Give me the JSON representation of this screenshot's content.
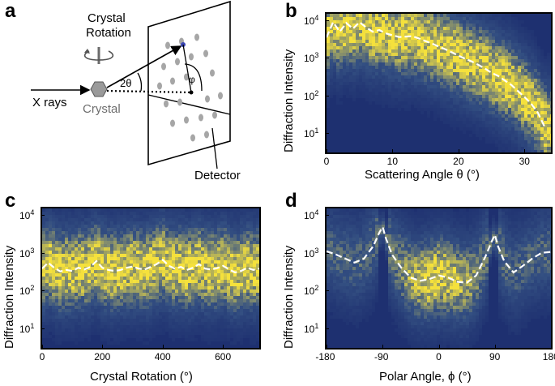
{
  "panels": {
    "a": {
      "letter": "a",
      "labels": {
        "crystal_rotation_1": "Crystal",
        "crystal_rotation_2": "Rotation",
        "two_theta": "2θ",
        "phi": "φ",
        "xrays": "X rays",
        "crystal": "Crystal",
        "detector": "Detector"
      }
    },
    "b": {
      "letter": "b"
    },
    "c": {
      "letter": "c"
    },
    "d": {
      "letter": "d"
    }
  },
  "chart_data": [
    {
      "panel": "b",
      "type": "heatmap",
      "xlabel": "Scattering Angle θ (°)",
      "ylabel": "Diffraction Intensity",
      "xlim": [
        0,
        34
      ],
      "ylim": [
        3,
        15000
      ],
      "yscale": "log",
      "x_ticks": [
        "0",
        "10",
        "20",
        "30"
      ],
      "x_tick_values": [
        0,
        10,
        20,
        30
      ],
      "y_ticks": [
        {
          "base": "10",
          "exp": "1",
          "value": 10
        },
        {
          "base": "10",
          "exp": "2",
          "value": 100
        },
        {
          "base": "10",
          "exp": "3",
          "value": 1000
        },
        {
          "base": "10",
          "exp": "4",
          "value": 10000
        }
      ],
      "mean_line": {
        "style": "white-dashed",
        "x": [
          0,
          1,
          2,
          3,
          4,
          5,
          6,
          7,
          8,
          9,
          10,
          11,
          12,
          13,
          14,
          15,
          16,
          17,
          18,
          19,
          20,
          21,
          22,
          23,
          24,
          25,
          26,
          27,
          28,
          29,
          30,
          31,
          32,
          33
        ],
        "y": [
          3500,
          9000,
          5000,
          8500,
          6000,
          9000,
          6500,
          5000,
          5500,
          4500,
          4000,
          3600,
          3700,
          3800,
          3300,
          2800,
          2400,
          2000,
          1700,
          1400,
          1150,
          950,
          800,
          650,
          520,
          400,
          330,
          250,
          190,
          130,
          90,
          60,
          35,
          15
        ]
      }
    },
    {
      "panel": "c",
      "type": "heatmap",
      "xlabel": "Crystal Rotation (°)",
      "ylabel": "Diffraction Intensity",
      "xlim": [
        0,
        720
      ],
      "ylim": [
        3,
        15000
      ],
      "yscale": "log",
      "x_ticks": [
        "0",
        "200",
        "400",
        "600"
      ],
      "x_tick_values": [
        0,
        200,
        400,
        600
      ],
      "y_ticks": [
        {
          "base": "10",
          "exp": "1",
          "value": 10
        },
        {
          "base": "10",
          "exp": "2",
          "value": 100
        },
        {
          "base": "10",
          "exp": "3",
          "value": 1000
        },
        {
          "base": "10",
          "exp": "4",
          "value": 10000
        }
      ],
      "mean_line": {
        "style": "white-dashed",
        "x": [
          0,
          20,
          40,
          60,
          80,
          100,
          120,
          140,
          160,
          180,
          200,
          220,
          240,
          260,
          280,
          300,
          320,
          340,
          360,
          380,
          400,
          420,
          440,
          460,
          480,
          500,
          520,
          540,
          560,
          580,
          600,
          620,
          640,
          660,
          680,
          700,
          720
        ],
        "y": [
          380,
          550,
          400,
          320,
          350,
          330,
          400,
          360,
          420,
          600,
          400,
          350,
          330,
          350,
          400,
          430,
          380,
          360,
          420,
          500,
          650,
          450,
          380,
          420,
          350,
          400,
          500,
          380,
          360,
          390,
          450,
          360,
          300,
          330,
          400,
          350,
          380
        ]
      }
    },
    {
      "panel": "d",
      "type": "heatmap",
      "xlabel": "Polar Angle, ϕ (°)",
      "ylabel": "Diffraction Intensity",
      "xlim": [
        -180,
        180
      ],
      "ylim": [
        3,
        15000
      ],
      "yscale": "log",
      "x_ticks": [
        "-180",
        "-90",
        "0",
        "90",
        "180"
      ],
      "x_tick_values": [
        -180,
        -90,
        0,
        90,
        180
      ],
      "y_ticks": [
        {
          "base": "10",
          "exp": "1",
          "value": 10
        },
        {
          "base": "10",
          "exp": "2",
          "value": 100
        },
        {
          "base": "10",
          "exp": "3",
          "value": 1000
        },
        {
          "base": "10",
          "exp": "4",
          "value": 10000
        }
      ],
      "mean_line": {
        "style": "white-dashed",
        "x": [
          -180,
          -165,
          -150,
          -135,
          -120,
          -105,
          -95,
          -90,
          -85,
          -75,
          -60,
          -45,
          -30,
          -15,
          0,
          15,
          30,
          45,
          60,
          75,
          85,
          90,
          95,
          105,
          120,
          135,
          150,
          165,
          180
        ],
        "y": [
          1100,
          900,
          700,
          550,
          700,
          1500,
          3500,
          4800,
          2500,
          900,
          400,
          220,
          180,
          200,
          250,
          220,
          170,
          160,
          250,
          800,
          2000,
          3000,
          1500,
          600,
          300,
          450,
          700,
          1000,
          1050
        ]
      }
    }
  ]
}
